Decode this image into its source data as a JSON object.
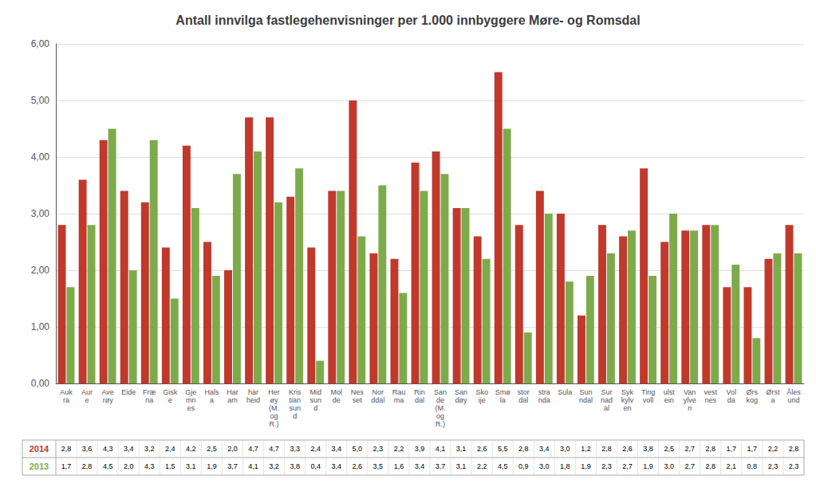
{
  "chart_data": {
    "type": "bar",
    "title": "Antall innvilga fastlegehenvisninger per 1.000 innbyggere Møre- og Romsdal",
    "categories": [
      "Auk\nra",
      "Aur\ne",
      "Ave\nrøy",
      "Eide",
      "Fræ\nna",
      "Gisk\ne",
      "Gje\nmn\nes",
      "Hals\na",
      "Har\nam",
      "har\nheid",
      "Her\nøy\n(M.\nog\nR.)",
      "Kris\ntian\nsun\nd",
      "Mid\nsun\nd",
      "Mol\nde",
      "Nes\nset",
      "Nor\nddal",
      "Rau\nma",
      "Rin\ndal",
      "San\nde\n(M.\nog\nR.)",
      "San\ndøy",
      "Sko\nije",
      "Smø\nla",
      "stor\ndal",
      "stra\nnda",
      "Sula",
      "Sun\nndal",
      "Sur\nnad\nal",
      "Syk\nkylv\nen",
      "Ting\nvoll",
      "ulst\nein",
      "Van\nylve\nn",
      "vest\nnes",
      "Vol\nda",
      "Ørs\nkog",
      "Ørst\na",
      "Åles\nund"
    ],
    "series": [
      {
        "name": "2014",
        "color": "#c0392b",
        "values": [
          2.8,
          3.6,
          4.3,
          3.4,
          3.2,
          2.4,
          4.2,
          2.5,
          2.0,
          4.7,
          4.7,
          3.3,
          2.4,
          3.4,
          5.0,
          2.3,
          2.2,
          3.9,
          4.1,
          3.1,
          2.6,
          5.5,
          2.8,
          3.4,
          3.0,
          1.2,
          2.8,
          2.6,
          3.8,
          2.5,
          2.7,
          2.8,
          1.7,
          1.7,
          2.2,
          2.8
        ],
        "value_labels": [
          "2,8",
          "3,6",
          "4,3",
          "3,4",
          "3,2",
          "2,4",
          "4,2",
          "2,5",
          "2,0",
          "4,7",
          "4,7",
          "3,3",
          "2,4",
          "3,4",
          "5,0",
          "2,3",
          "2,2",
          "3,9",
          "4,1",
          "3,1",
          "2,6",
          "5,5",
          "2,8",
          "3,4",
          "3,0",
          "1,2",
          "2,8",
          "2,6",
          "3,8",
          "2,5",
          "2,7",
          "2,8",
          "1,7",
          "1,7",
          "2,2",
          "2,8"
        ]
      },
      {
        "name": "2013",
        "color": "#7dab4c",
        "values": [
          1.7,
          2.8,
          4.5,
          2.0,
          4.3,
          1.5,
          3.1,
          1.9,
          3.7,
          4.1,
          3.2,
          3.8,
          0.4,
          3.4,
          2.6,
          3.5,
          1.6,
          3.4,
          3.7,
          3.1,
          2.2,
          4.5,
          0.9,
          3.0,
          1.8,
          1.9,
          2.3,
          2.7,
          1.9,
          3.0,
          2.7,
          2.8,
          2.1,
          0.8,
          2.3,
          2.3
        ],
        "value_labels": [
          "1,7",
          "2,8",
          "4,5",
          "2,0",
          "4,3",
          "1,5",
          "3,1",
          "1,9",
          "3,7",
          "4,1",
          "3,2",
          "3,8",
          "0,4",
          "3,4",
          "2,6",
          "3,5",
          "1,6",
          "3,4",
          "3,7",
          "3,1",
          "2,2",
          "4,5",
          "0,9",
          "3,0",
          "1,8",
          "1,9",
          "2,3",
          "2,7",
          "1,9",
          "3,0",
          "2,7",
          "2,8",
          "2,1",
          "0,8",
          "2,3",
          "2,3"
        ]
      }
    ],
    "ylim": [
      0,
      6
    ],
    "yticks": [
      {
        "value": 0,
        "label": "0,00"
      },
      {
        "value": 1,
        "label": "1,00"
      },
      {
        "value": 2,
        "label": "2,00"
      },
      {
        "value": 3,
        "label": "3,00"
      },
      {
        "value": 4,
        "label": "4,00"
      },
      {
        "value": 5,
        "label": "5,00"
      },
      {
        "value": 6,
        "label": "6,00"
      }
    ],
    "grid": true
  }
}
